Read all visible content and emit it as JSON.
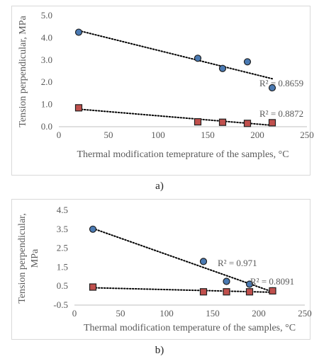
{
  "chart_data": [
    {
      "type": "scatter",
      "ylabel": "Tension perpendicular, MPa",
      "xlabel": "Thermal modification temeprature of the samples, °C",
      "xlim": [
        0,
        250
      ],
      "ylim": [
        0.0,
        5.0
      ],
      "xticks": [
        "0",
        "50",
        "100",
        "150",
        "200",
        "250"
      ],
      "yticks": [
        "0.0",
        "1.0",
        "2.0",
        "3.0",
        "4.0",
        "5.0"
      ],
      "grid": false,
      "series": [
        {
          "marker": "circle",
          "color": "#4a7ab3",
          "x": [
            20,
            140,
            165,
            190,
            215
          ],
          "y": [
            4.25,
            3.08,
            2.62,
            2.92,
            1.75
          ],
          "trendline": true,
          "r2_label": "R² = 0.8659"
        },
        {
          "marker": "square",
          "color": "#c0504d",
          "x": [
            20,
            140,
            165,
            190,
            215
          ],
          "y": [
            0.85,
            0.22,
            0.2,
            0.15,
            0.18
          ],
          "trendline": true,
          "r2_label": "R² = 0.8872"
        }
      ],
      "caption": "a)"
    },
    {
      "type": "scatter",
      "ylabel": "Tension perpendicular, MPa",
      "xlabel": "Thermal modification temperature of the samples, °C",
      "xlim": [
        0,
        250
      ],
      "ylim": [
        -0.5,
        4.5
      ],
      "xticks": [
        "0",
        "50",
        "100",
        "150",
        "200",
        "250"
      ],
      "yticks": [
        "-0.5",
        "0.5",
        "1.5",
        "2.5",
        "3.5",
        "4.5"
      ],
      "grid": false,
      "series": [
        {
          "marker": "circle",
          "color": "#4a7ab3",
          "x": [
            20,
            140,
            165,
            190,
            215
          ],
          "y": [
            3.5,
            1.8,
            0.75,
            0.6,
            0.25
          ],
          "trendline": true,
          "r2_label": "R² = 0.971"
        },
        {
          "marker": "square",
          "color": "#c0504d",
          "x": [
            20,
            140,
            165,
            190,
            215
          ],
          "y": [
            0.45,
            0.2,
            0.2,
            0.2,
            0.25
          ],
          "trendline": true,
          "r2_label": "R² = 0.8091"
        }
      ],
      "caption": "b)"
    }
  ]
}
